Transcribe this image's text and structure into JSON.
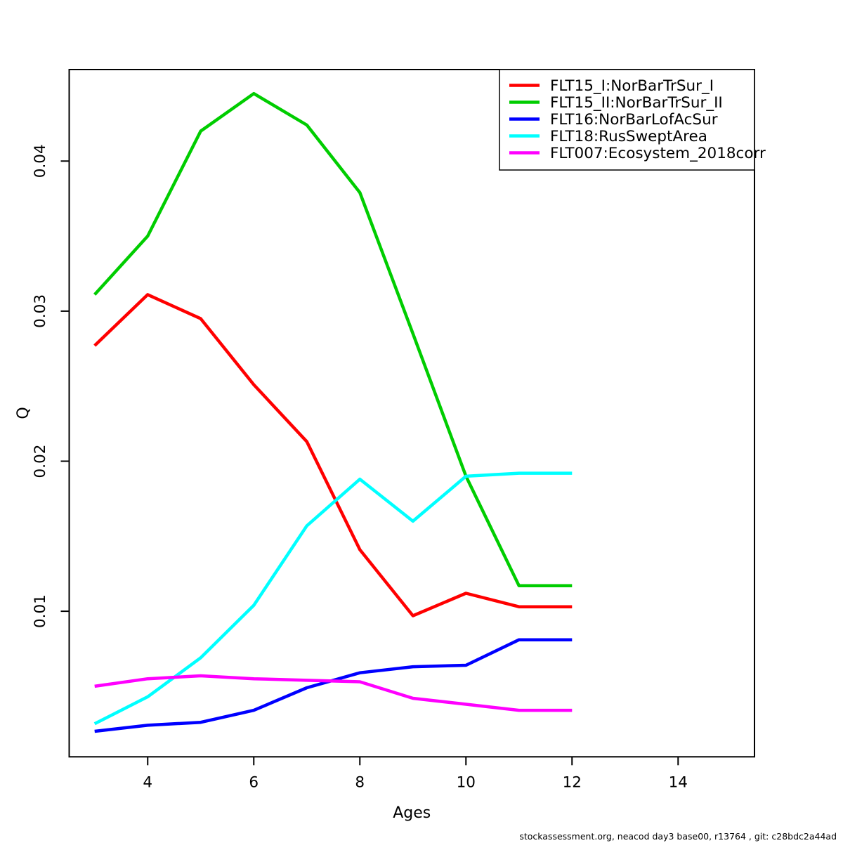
{
  "page": {
    "background": "#ffffff",
    "footer": "stockassessment.org, neacod day3 base00, r13764 , git: c28bdc2a44ad"
  },
  "chart_data": {
    "type": "line",
    "title": "",
    "xlabel": "Ages",
    "ylabel": "Q",
    "x": [
      3,
      4,
      5,
      6,
      7,
      8,
      9,
      10,
      11,
      12
    ],
    "series": [
      {
        "name": "FLT15_I:NorBarTrSur_I",
        "color": "#ff0000",
        "values": [
          0.0277,
          0.0311,
          0.0295,
          0.0251,
          0.0213,
          0.0141,
          0.0097,
          0.0112,
          0.0103,
          0.0103
        ]
      },
      {
        "name": "FLT15_II:NorBarTrSur_II",
        "color": "#00cd00",
        "values": [
          0.0311,
          0.035,
          0.042,
          0.0445,
          0.0424,
          0.0379,
          0.0285,
          0.019,
          0.0117,
          0.0117
        ]
      },
      {
        "name": "FLT16:NorBarLofAcSur",
        "color": "#0000ff",
        "values": [
          0.002,
          0.0024,
          0.0026,
          0.0034,
          0.0049,
          0.0059,
          0.0063,
          0.0064,
          0.0081,
          0.0081
        ]
      },
      {
        "name": "FLT18:RusSweptArea",
        "color": "#00ffff",
        "values": [
          0.0025,
          0.0043,
          0.0069,
          0.0104,
          0.0157,
          0.0188,
          0.016,
          0.019,
          0.0192,
          0.0192
        ]
      },
      {
        "name": "FLT007:Ecosystem_2018corr",
        "color": "#ff00ff",
        "values": [
          0.005,
          0.0055,
          0.0057,
          0.0055,
          0.0054,
          0.0053,
          0.0042,
          0.0038,
          0.0034,
          0.0034
        ]
      }
    ],
    "xticks": [
      4,
      6,
      8,
      10,
      12,
      14
    ],
    "yticks": [
      "0.01",
      "0.02",
      "0.03",
      "0.04"
    ],
    "xlim": [
      2.52,
      15.44
    ],
    "ylim": [
      0.0003,
      0.0461
    ],
    "grid": false,
    "legend_position": "top-right",
    "axis_color": "#000000"
  }
}
